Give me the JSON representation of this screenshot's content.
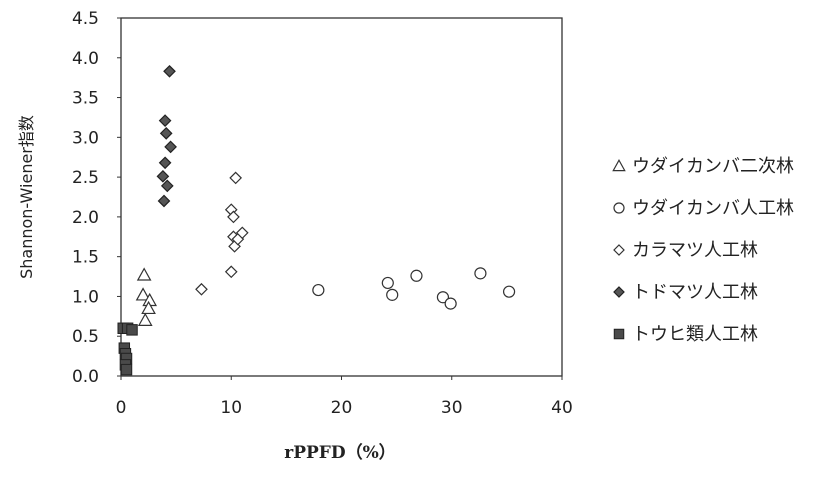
{
  "chart_data": {
    "type": "scatter",
    "xlabel": "rPPFD（%）",
    "ylabel": "Shannon-Wiener指数",
    "xlim": [
      0,
      40
    ],
    "ylim": [
      0,
      4.5
    ],
    "x_ticks": [
      "0",
      "10",
      "20",
      "30",
      "40"
    ],
    "y_ticks": [
      "0.0",
      "0.5",
      "1.0",
      "1.5",
      "2.0",
      "2.5",
      "3.0",
      "3.5",
      "4.0",
      "4.5"
    ],
    "grid": false,
    "legend_position": "right",
    "series": [
      {
        "name": "ウダイカンバ二次林",
        "marker": "triangle-open",
        "color": "#333333",
        "points": [
          [
            2.1,
            1.27
          ],
          [
            2.0,
            1.02
          ],
          [
            2.6,
            0.95
          ],
          [
            2.5,
            0.85
          ],
          [
            2.2,
            0.7
          ]
        ]
      },
      {
        "name": "ウダイカンバ人工林",
        "marker": "circle-open",
        "color": "#333333",
        "points": [
          [
            17.9,
            1.08
          ],
          [
            24.2,
            1.17
          ],
          [
            24.6,
            1.02
          ],
          [
            26.8,
            1.26
          ],
          [
            29.2,
            0.99
          ],
          [
            29.9,
            0.91
          ],
          [
            32.6,
            1.29
          ],
          [
            35.2,
            1.06
          ]
        ]
      },
      {
        "name": "カラマツ人工林",
        "marker": "diamond-open",
        "color": "#333333",
        "points": [
          [
            7.3,
            1.09
          ],
          [
            10.0,
            1.31
          ],
          [
            10.0,
            2.09
          ],
          [
            10.2,
            2.0
          ],
          [
            10.2,
            1.75
          ],
          [
            10.3,
            1.63
          ],
          [
            10.4,
            2.49
          ],
          [
            10.6,
            1.72
          ],
          [
            11.0,
            1.8
          ]
        ]
      },
      {
        "name": "トドマツ人工林",
        "marker": "diamond-filled",
        "color": "#555555",
        "points": [
          [
            4.4,
            3.83
          ],
          [
            4.0,
            3.21
          ],
          [
            4.1,
            3.05
          ],
          [
            4.5,
            2.88
          ],
          [
            4.0,
            2.68
          ],
          [
            3.8,
            2.51
          ],
          [
            4.2,
            2.39
          ],
          [
            3.9,
            2.2
          ]
        ]
      },
      {
        "name": "トウヒ類人工林",
        "marker": "square-filled",
        "color": "#4a4a4a",
        "points": [
          [
            0.2,
            0.6
          ],
          [
            0.6,
            0.6
          ],
          [
            1.0,
            0.58
          ],
          [
            0.3,
            0.35
          ],
          [
            0.4,
            0.28
          ],
          [
            0.5,
            0.22
          ],
          [
            0.4,
            0.14
          ],
          [
            0.5,
            0.08
          ]
        ]
      }
    ]
  }
}
